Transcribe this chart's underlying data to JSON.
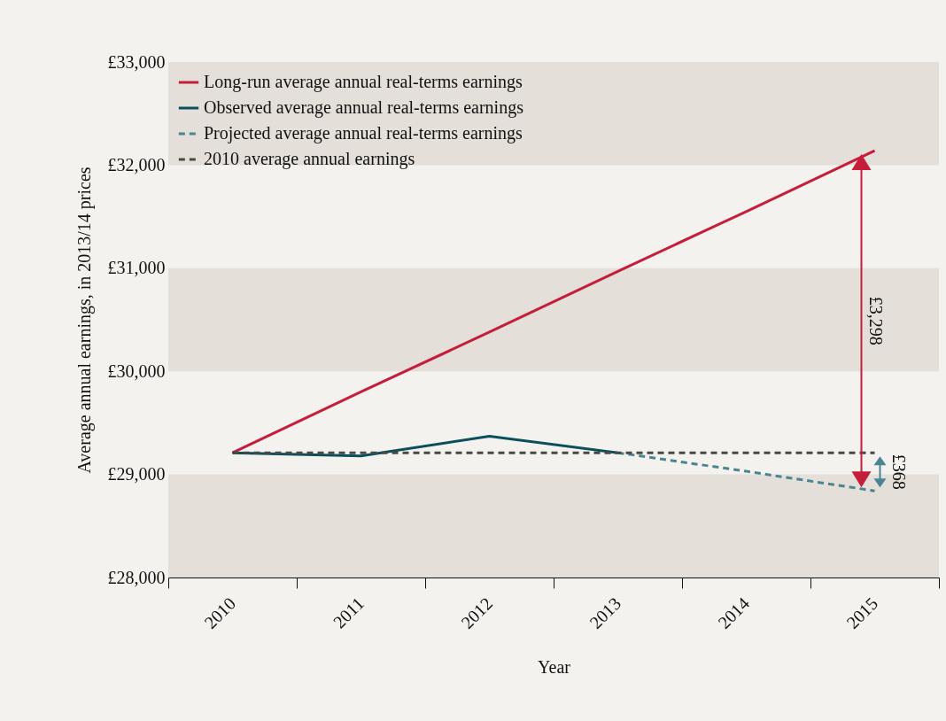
{
  "chart_data": {
    "type": "line",
    "xlabel": "Year",
    "ylabel": "Average annual earnings, in 2013/14 prices",
    "categories": [
      "2010",
      "2011",
      "2012",
      "2013",
      "2014",
      "2015"
    ],
    "series": [
      {
        "name": "Long-run average annual real-terms earnings",
        "color": "#c41e3a",
        "line_style": "solid",
        "values": [
          29210,
          29800,
          30380,
          30970,
          31550,
          32140
        ]
      },
      {
        "name": "Observed average annual real-terms earnings",
        "color": "#0b4f5c",
        "line_style": "solid",
        "values": [
          29210,
          29180,
          29370,
          29210,
          null,
          null
        ]
      },
      {
        "name": "Projected average annual real-terms earnings",
        "color": "#4a8591",
        "line_style": "dashed",
        "values": [
          null,
          null,
          null,
          29210,
          29030,
          28840
        ]
      },
      {
        "name": "2010 average annual earnings",
        "color": "#4a4a44",
        "line_style": "dashed",
        "values": [
          29210,
          29210,
          29210,
          29210,
          29210,
          29210
        ]
      }
    ],
    "ylim": [
      28000,
      33000
    ],
    "yticks": [
      {
        "value": 28000,
        "label": "£28,000"
      },
      {
        "value": 29000,
        "label": "£29,000"
      },
      {
        "value": 30000,
        "label": "£30,000"
      },
      {
        "value": 31000,
        "label": "£31,000"
      },
      {
        "value": 32000,
        "label": "£32,000"
      },
      {
        "value": 33000,
        "label": "£33,000"
      }
    ],
    "bands": [
      {
        "axis": "y",
        "from": 28000,
        "to": 29000,
        "color": "#e4dfd9"
      },
      {
        "axis": "y",
        "from": 30000,
        "to": 31000,
        "color": "#e4dfd9"
      },
      {
        "axis": "y",
        "from": 32000,
        "to": 33000,
        "color": "#e4dfd9"
      }
    ],
    "annotations": [
      "£3,298",
      "£368"
    ],
    "legend": "top left",
    "grid": false
  }
}
